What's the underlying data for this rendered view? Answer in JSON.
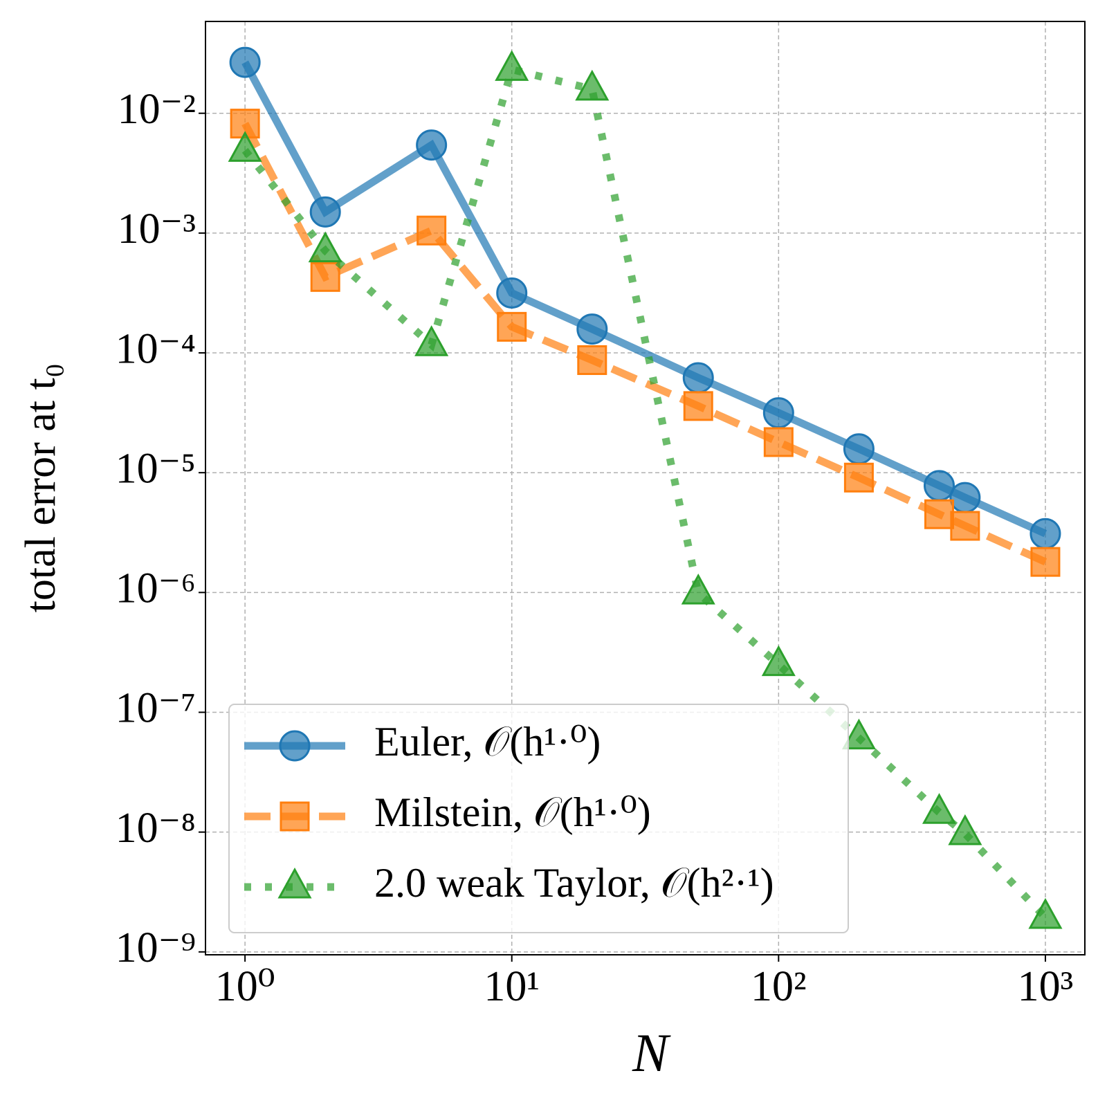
{
  "chart_data": {
    "type": "line",
    "x_label": "N",
    "y_label": "total error at t₀",
    "x": [
      1,
      2,
      5,
      10,
      20,
      50,
      100,
      200,
      400,
      500,
      1000
    ],
    "series": [
      {
        "name": "Euler, 𝒪(h¹·⁰)",
        "color": "#1f77b4",
        "style": "solid",
        "marker": "circle",
        "values": [
          0.0266,
          0.0015,
          0.00543,
          0.000316,
          0.000158,
          6.2e-05,
          3.16e-05,
          1.58e-05,
          7.8e-06,
          6.2e-06,
          3.1e-06
        ]
      },
      {
        "name": "Milstein, 𝒪(h¹·⁰)",
        "color": "#ff7f0e",
        "style": "dashed",
        "marker": "square",
        "values": [
          0.0082,
          0.00043,
          0.00105,
          0.000165,
          8.7e-05,
          3.6e-05,
          1.8e-05,
          9.1e-06,
          4.5e-06,
          3.6e-06,
          1.8e-06
        ]
      },
      {
        "name": "2.0 weak Taylor, 𝒪(h²·¹)",
        "color": "#2ca02c",
        "style": "dotted",
        "marker": "triangle",
        "values": [
          0.0049,
          0.00071,
          0.000117,
          0.0232,
          0.0159,
          9.9e-07,
          2.5e-07,
          6.1e-08,
          1.46e-08,
          9.7e-09,
          1.94e-09
        ]
      }
    ],
    "x_scale": "log",
    "y_scale": "log",
    "xlim": [
      0.711,
      1406
    ],
    "ylim": [
      9.46e-10,
      0.0584
    ],
    "xticks": [
      {
        "value": 1,
        "label": "10⁰"
      },
      {
        "value": 10,
        "label": "10¹"
      },
      {
        "value": 100,
        "label": "10²"
      },
      {
        "value": 1000,
        "label": "10³"
      }
    ],
    "yticks": [
      {
        "value": 1e-09,
        "label": "10⁻⁹"
      },
      {
        "value": 1e-08,
        "label": "10⁻⁸"
      },
      {
        "value": 1e-07,
        "label": "10⁻⁷"
      },
      {
        "value": 1e-06,
        "label": "10⁻⁶"
      },
      {
        "value": 1e-05,
        "label": "10⁻⁵"
      },
      {
        "value": 0.0001,
        "label": "10⁻⁴"
      },
      {
        "value": 0.001,
        "label": "10⁻³"
      },
      {
        "value": 0.01,
        "label": "10⁻²"
      }
    ],
    "grid": true,
    "legend_position": "lower left"
  }
}
